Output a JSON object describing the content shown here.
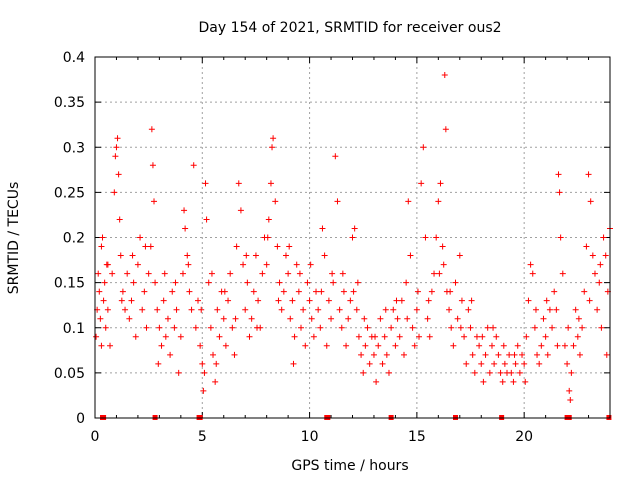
{
  "chart_data": {
    "type": "scatter",
    "title": "Day 154 of 2021, SRMTID for receiver ous2",
    "xlabel": "GPS time / hours",
    "ylabel": "SRMTID / TECUs",
    "xlim": [
      0,
      24
    ],
    "ylim": [
      0,
      0.4
    ],
    "xticks": [
      0,
      5,
      10,
      15,
      20
    ],
    "xtick_labels": [
      "0",
      "5",
      "10",
      "15",
      "20"
    ],
    "yticks": [
      0,
      0.05,
      0.1,
      0.15,
      0.2,
      0.25,
      0.3,
      0.35,
      0.4
    ],
    "ytick_labels": [
      "0",
      "0.05",
      "0.1",
      "0.15",
      "0.2",
      "0.25",
      "0.3",
      "0.35",
      "0.4"
    ],
    "grid": true,
    "marker": "+",
    "color": "#ff0000",
    "series": [
      {
        "name": "SRMTID",
        "points": [
          [
            0.05,
            0.09
          ],
          [
            0.1,
            0.12
          ],
          [
            0.15,
            0.16
          ],
          [
            0.2,
            0.14
          ],
          [
            0.25,
            0.11
          ],
          [
            0.3,
            0.19
          ],
          [
            0.35,
            0.2
          ],
          [
            0.4,
            0.13
          ],
          [
            0.45,
            0.15
          ],
          [
            0.5,
            0.1
          ],
          [
            0.55,
            0.17
          ],
          [
            0.6,
            0.12
          ],
          [
            0.7,
            0.08
          ],
          [
            0.8,
            0.16
          ],
          [
            0.9,
            0.25
          ],
          [
            0.95,
            0.29
          ],
          [
            1.0,
            0.3
          ],
          [
            1.05,
            0.31
          ],
          [
            1.1,
            0.27
          ],
          [
            1.15,
            0.22
          ],
          [
            1.2,
            0.18
          ],
          [
            1.3,
            0.14
          ],
          [
            1.4,
            0.12
          ],
          [
            1.5,
            0.16
          ],
          [
            1.6,
            0.11
          ],
          [
            1.7,
            0.13
          ],
          [
            1.8,
            0.15
          ],
          [
            1.9,
            0.09
          ],
          [
            2.0,
            0.17
          ],
          [
            2.1,
            0.2
          ],
          [
            2.2,
            0.12
          ],
          [
            2.3,
            0.14
          ],
          [
            2.4,
            0.1
          ],
          [
            2.5,
            0.16
          ],
          [
            2.6,
            0.19
          ],
          [
            2.65,
            0.32
          ],
          [
            2.7,
            0.28
          ],
          [
            2.75,
            0.24
          ],
          [
            2.8,
            0.15
          ],
          [
            2.9,
            0.12
          ],
          [
            3.0,
            0.1
          ],
          [
            3.1,
            0.08
          ],
          [
            3.2,
            0.13
          ],
          [
            3.3,
            0.09
          ],
          [
            3.4,
            0.11
          ],
          [
            3.5,
            0.07
          ],
          [
            3.6,
            0.14
          ],
          [
            3.7,
            0.1
          ],
          [
            3.8,
            0.12
          ],
          [
            3.9,
            0.05
          ],
          [
            4.0,
            0.09
          ],
          [
            4.1,
            0.16
          ],
          [
            4.15,
            0.23
          ],
          [
            4.2,
            0.21
          ],
          [
            4.3,
            0.18
          ],
          [
            4.4,
            0.14
          ],
          [
            4.5,
            0.12
          ],
          [
            4.6,
            0.28
          ],
          [
            4.7,
            0.1
          ],
          [
            4.8,
            0.13
          ],
          [
            4.9,
            0.08
          ],
          [
            5.0,
            0.06
          ],
          [
            5.05,
            0.03
          ],
          [
            5.1,
            0.05
          ],
          [
            5.15,
            0.26
          ],
          [
            5.2,
            0.22
          ],
          [
            5.3,
            0.15
          ],
          [
            5.4,
            0.1
          ],
          [
            5.5,
            0.07
          ],
          [
            5.6,
            0.04
          ],
          [
            5.7,
            0.12
          ],
          [
            5.8,
            0.09
          ],
          [
            5.9,
            0.14
          ],
          [
            6.0,
            0.11
          ],
          [
            6.1,
            0.08
          ],
          [
            6.2,
            0.13
          ],
          [
            6.3,
            0.16
          ],
          [
            6.4,
            0.1
          ],
          [
            6.5,
            0.07
          ],
          [
            6.6,
            0.19
          ],
          [
            6.7,
            0.26
          ],
          [
            6.8,
            0.23
          ],
          [
            6.9,
            0.17
          ],
          [
            7.0,
            0.12
          ],
          [
            7.1,
            0.15
          ],
          [
            7.2,
            0.09
          ],
          [
            7.3,
            0.11
          ],
          [
            7.4,
            0.14
          ],
          [
            7.5,
            0.18
          ],
          [
            7.6,
            0.13
          ],
          [
            7.7,
            0.1
          ],
          [
            7.8,
            0.16
          ],
          [
            7.9,
            0.2
          ],
          [
            8.0,
            0.17
          ],
          [
            8.1,
            0.22
          ],
          [
            8.2,
            0.26
          ],
          [
            8.25,
            0.3
          ],
          [
            8.3,
            0.31
          ],
          [
            8.4,
            0.24
          ],
          [
            8.5,
            0.19
          ],
          [
            8.6,
            0.15
          ],
          [
            8.7,
            0.12
          ],
          [
            8.8,
            0.14
          ],
          [
            8.9,
            0.18
          ],
          [
            9.0,
            0.16
          ],
          [
            9.1,
            0.11
          ],
          [
            9.2,
            0.13
          ],
          [
            9.3,
            0.09
          ],
          [
            9.4,
            0.17
          ],
          [
            9.5,
            0.14
          ],
          [
            9.6,
            0.1
          ],
          [
            9.7,
            0.12
          ],
          [
            9.8,
            0.08
          ],
          [
            9.9,
            0.15
          ],
          [
            10.0,
            0.13
          ],
          [
            10.1,
            0.11
          ],
          [
            10.2,
            0.09
          ],
          [
            10.3,
            0.14
          ],
          [
            10.4,
            0.12
          ],
          [
            10.5,
            0.1
          ],
          [
            10.6,
            0.21
          ],
          [
            10.7,
            0.18
          ],
          [
            10.8,
            0.08
          ],
          [
            10.9,
            0.13
          ],
          [
            11.0,
            0.11
          ],
          [
            11.1,
            0.15
          ],
          [
            11.2,
            0.29
          ],
          [
            11.3,
            0.24
          ],
          [
            11.4,
            0.12
          ],
          [
            11.5,
            0.1
          ],
          [
            11.6,
            0.14
          ],
          [
            11.7,
            0.08
          ],
          [
            11.8,
            0.11
          ],
          [
            11.9,
            0.13
          ],
          [
            12.0,
            0.2
          ],
          [
            12.1,
            0.21
          ],
          [
            12.2,
            0.12
          ],
          [
            12.3,
            0.09
          ],
          [
            12.4,
            0.07
          ],
          [
            12.5,
            0.05
          ],
          [
            12.6,
            0.08
          ],
          [
            12.7,
            0.1
          ],
          [
            12.8,
            0.06
          ],
          [
            12.9,
            0.09
          ],
          [
            13.0,
            0.07
          ],
          [
            13.1,
            0.04
          ],
          [
            13.2,
            0.08
          ],
          [
            13.3,
            0.11
          ],
          [
            13.4,
            0.06
          ],
          [
            13.5,
            0.09
          ],
          [
            13.6,
            0.07
          ],
          [
            13.7,
            0.05
          ],
          [
            13.8,
            0.1
          ],
          [
            13.9,
            0.12
          ],
          [
            14.0,
            0.08
          ],
          [
            14.1,
            0.11
          ],
          [
            14.2,
            0.09
          ],
          [
            14.3,
            0.13
          ],
          [
            14.4,
            0.07
          ],
          [
            14.5,
            0.15
          ],
          [
            14.6,
            0.24
          ],
          [
            14.7,
            0.18
          ],
          [
            14.8,
            0.1
          ],
          [
            14.9,
            0.08
          ],
          [
            15.0,
            0.12
          ],
          [
            15.1,
            0.09
          ],
          [
            15.2,
            0.26
          ],
          [
            15.3,
            0.3
          ],
          [
            15.4,
            0.2
          ],
          [
            15.5,
            0.11
          ],
          [
            15.6,
            0.09
          ],
          [
            15.7,
            0.14
          ],
          [
            15.8,
            0.16
          ],
          [
            15.9,
            0.2
          ],
          [
            16.0,
            0.24
          ],
          [
            16.1,
            0.26
          ],
          [
            16.2,
            0.19
          ],
          [
            16.25,
            0.17
          ],
          [
            16.3,
            0.38
          ],
          [
            16.35,
            0.32
          ],
          [
            16.4,
            0.14
          ],
          [
            16.5,
            0.12
          ],
          [
            16.6,
            0.1
          ],
          [
            16.7,
            0.08
          ],
          [
            16.8,
            0.15
          ],
          [
            16.9,
            0.11
          ],
          [
            17.0,
            0.18
          ],
          [
            17.1,
            0.13
          ],
          [
            17.2,
            0.09
          ],
          [
            17.3,
            0.06
          ],
          [
            17.4,
            0.12
          ],
          [
            17.5,
            0.1
          ],
          [
            17.6,
            0.07
          ],
          [
            17.7,
            0.05
          ],
          [
            17.8,
            0.09
          ],
          [
            17.9,
            0.08
          ],
          [
            18.0,
            0.06
          ],
          [
            18.1,
            0.04
          ],
          [
            18.2,
            0.07
          ],
          [
            18.3,
            0.1
          ],
          [
            18.4,
            0.05
          ],
          [
            18.5,
            0.08
          ],
          [
            18.6,
            0.06
          ],
          [
            18.7,
            0.09
          ],
          [
            18.8,
            0.07
          ],
          [
            18.9,
            0.05
          ],
          [
            19.0,
            0.04
          ],
          [
            19.1,
            0.06
          ],
          [
            19.2,
            0.05
          ],
          [
            19.3,
            0.07
          ],
          [
            19.4,
            0.05
          ],
          [
            19.5,
            0.04
          ],
          [
            19.6,
            0.06
          ],
          [
            19.7,
            0.08
          ],
          [
            19.8,
            0.05
          ],
          [
            19.9,
            0.07
          ],
          [
            20.0,
            0.06
          ],
          [
            20.1,
            0.09
          ],
          [
            20.2,
            0.13
          ],
          [
            20.3,
            0.17
          ],
          [
            20.4,
            0.16
          ],
          [
            20.5,
            0.1
          ],
          [
            20.6,
            0.07
          ],
          [
            20.7,
            0.06
          ],
          [
            20.8,
            0.08
          ],
          [
            20.9,
            0.11
          ],
          [
            21.0,
            0.09
          ],
          [
            21.1,
            0.07
          ],
          [
            21.2,
            0.12
          ],
          [
            21.3,
            0.1
          ],
          [
            21.4,
            0.14
          ],
          [
            21.5,
            0.12
          ],
          [
            21.6,
            0.27
          ],
          [
            21.65,
            0.25
          ],
          [
            21.7,
            0.2
          ],
          [
            21.8,
            0.16
          ],
          [
            21.9,
            0.08
          ],
          [
            22.0,
            0.06
          ],
          [
            22.1,
            0.03
          ],
          [
            22.15,
            0.02
          ],
          [
            22.2,
            0.05
          ],
          [
            22.3,
            0.08
          ],
          [
            22.4,
            0.12
          ],
          [
            22.5,
            0.09
          ],
          [
            22.6,
            0.07
          ],
          [
            22.7,
            0.1
          ],
          [
            22.8,
            0.14
          ],
          [
            22.9,
            0.19
          ],
          [
            23.0,
            0.27
          ],
          [
            23.1,
            0.24
          ],
          [
            23.2,
            0.18
          ],
          [
            23.3,
            0.16
          ],
          [
            23.4,
            0.12
          ],
          [
            23.5,
            0.15
          ],
          [
            23.6,
            0.1
          ],
          [
            23.7,
            0.2
          ],
          [
            23.8,
            0.18
          ],
          [
            23.9,
            0.14
          ],
          [
            24.0,
            0.21
          ],
          [
            23.85,
            0.07
          ],
          [
            0.6,
            0.17
          ],
          [
            1.25,
            0.13
          ],
          [
            1.75,
            0.18
          ],
          [
            2.35,
            0.19
          ],
          [
            3.25,
            0.16
          ],
          [
            3.75,
            0.15
          ],
          [
            4.35,
            0.17
          ],
          [
            4.95,
            0.12
          ],
          [
            5.45,
            0.16
          ],
          [
            6.05,
            0.14
          ],
          [
            6.55,
            0.11
          ],
          [
            7.05,
            0.18
          ],
          [
            7.55,
            0.1
          ],
          [
            8.05,
            0.2
          ],
          [
            8.55,
            0.13
          ],
          [
            9.05,
            0.19
          ],
          [
            9.55,
            0.16
          ],
          [
            10.05,
            0.17
          ],
          [
            10.55,
            0.14
          ],
          [
            11.05,
            0.16
          ],
          [
            11.55,
            0.16
          ],
          [
            12.05,
            0.14
          ],
          [
            12.55,
            0.11
          ],
          [
            13.05,
            0.09
          ],
          [
            13.55,
            0.12
          ],
          [
            14.05,
            0.13
          ],
          [
            14.55,
            0.11
          ],
          [
            15.05,
            0.14
          ],
          [
            15.55,
            0.13
          ],
          [
            16.05,
            0.16
          ],
          [
            16.55,
            0.14
          ],
          [
            17.05,
            0.1
          ],
          [
            17.55,
            0.13
          ],
          [
            18.05,
            0.09
          ],
          [
            18.55,
            0.1
          ],
          [
            19.05,
            0.08
          ],
          [
            19.55,
            0.07
          ],
          [
            20.05,
            0.04
          ],
          [
            20.55,
            0.12
          ],
          [
            21.05,
            0.13
          ],
          [
            21.55,
            0.08
          ],
          [
            22.05,
            0.1
          ],
          [
            22.55,
            0.11
          ],
          [
            23.05,
            0.13
          ],
          [
            23.55,
            0.17
          ],
          [
            0.3,
            0.08
          ],
          [
            2.95,
            0.06
          ],
          [
            5.65,
            0.06
          ],
          [
            9.25,
            0.06
          ],
          [
            12.25,
            0.15
          ]
        ]
      }
    ],
    "near_zero_points": [
      [
        0.35,
        0.0
      ],
      [
        0.4,
        0.0
      ],
      [
        2.8,
        0.0
      ],
      [
        4.85,
        0.0
      ],
      [
        4.9,
        0.0
      ],
      [
        10.8,
        0.0
      ],
      [
        10.85,
        0.0
      ],
      [
        13.8,
        0.0
      ],
      [
        16.8,
        0.0
      ],
      [
        18.95,
        0.0
      ],
      [
        22.0,
        0.0
      ],
      [
        22.05,
        0.0
      ],
      [
        22.1,
        0.0
      ],
      [
        23.95,
        0.0
      ]
    ]
  }
}
